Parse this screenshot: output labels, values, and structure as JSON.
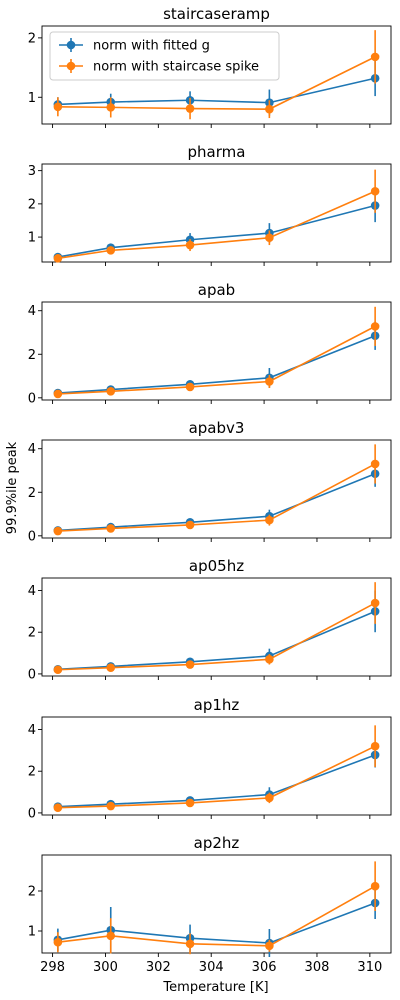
{
  "figure": {
    "ylabel": "99.9%ile peak",
    "xlabel": "Temperature [K]"
  },
  "colors": {
    "fitted": "#1f77b4",
    "spike": "#ff7f0e"
  },
  "legend": {
    "placement": "upper-left of first panel",
    "entries": [
      "norm with fitted g",
      "norm with staircase spike"
    ]
  },
  "chart_data": [
    {
      "type": "line",
      "title": "staircaseramp",
      "x": [
        298.2,
        300.2,
        303.2,
        306.2,
        310.2
      ],
      "xlim": [
        297.6,
        310.8
      ],
      "xticks": [
        298,
        300,
        302,
        304,
        306,
        308,
        310
      ],
      "ylim": [
        0.55,
        2.2
      ],
      "yticks": [
        1,
        2
      ],
      "series": [
        {
          "name": "norm with fitted g",
          "color": "#1f77b4",
          "values": [
            0.88,
            0.92,
            0.95,
            0.91,
            1.32
          ],
          "err": [
            0.12,
            0.14,
            0.15,
            0.22,
            0.3
          ]
        },
        {
          "name": "norm with staircase spike",
          "color": "#ff7f0e",
          "values": [
            0.84,
            0.83,
            0.81,
            0.8,
            1.68
          ],
          "err": [
            0.16,
            0.17,
            0.18,
            0.15,
            0.45
          ]
        }
      ]
    },
    {
      "type": "line",
      "title": "pharma",
      "x": [
        298.2,
        300.2,
        303.2,
        306.2,
        310.2
      ],
      "xlim": [
        297.6,
        310.8
      ],
      "xticks": [
        298,
        300,
        302,
        304,
        306,
        308,
        310
      ],
      "ylim": [
        0.25,
        3.2
      ],
      "yticks": [
        1,
        2,
        3
      ],
      "series": [
        {
          "name": "norm with fitted g",
          "color": "#1f77b4",
          "values": [
            0.4,
            0.68,
            0.92,
            1.12,
            1.95
          ],
          "err": [
            0.06,
            0.12,
            0.2,
            0.3,
            0.5
          ]
        },
        {
          "name": "norm with staircase spike",
          "color": "#ff7f0e",
          "values": [
            0.36,
            0.6,
            0.76,
            0.98,
            2.38
          ],
          "err": [
            0.08,
            0.12,
            0.18,
            0.22,
            0.65
          ]
        }
      ]
    },
    {
      "type": "line",
      "title": "apab",
      "x": [
        298.2,
        300.2,
        303.2,
        306.2,
        310.2
      ],
      "xlim": [
        297.6,
        310.8
      ],
      "xticks": [
        298,
        300,
        302,
        304,
        306,
        308,
        310
      ],
      "ylim": [
        -0.1,
        4.4
      ],
      "yticks": [
        0,
        2,
        4
      ],
      "series": [
        {
          "name": "norm with fitted g",
          "color": "#1f77b4",
          "values": [
            0.22,
            0.38,
            0.62,
            0.92,
            2.85
          ],
          "err": [
            0.06,
            0.12,
            0.18,
            0.45,
            0.65
          ]
        },
        {
          "name": "norm with staircase spike",
          "color": "#ff7f0e",
          "values": [
            0.18,
            0.3,
            0.5,
            0.75,
            3.28
          ],
          "err": [
            0.06,
            0.12,
            0.16,
            0.3,
            0.9
          ]
        }
      ]
    },
    {
      "type": "line",
      "title": "apabv3",
      "x": [
        298.2,
        300.2,
        303.2,
        306.2,
        310.2
      ],
      "xlim": [
        297.6,
        310.8
      ],
      "xticks": [
        298,
        300,
        302,
        304,
        306,
        308,
        310
      ],
      "ylim": [
        -0.1,
        4.4
      ],
      "yticks": [
        0,
        2,
        4
      ],
      "series": [
        {
          "name": "norm with fitted g",
          "color": "#1f77b4",
          "values": [
            0.25,
            0.4,
            0.62,
            0.9,
            2.85
          ],
          "err": [
            0.06,
            0.12,
            0.15,
            0.3,
            0.6
          ]
        },
        {
          "name": "norm with staircase spike",
          "color": "#ff7f0e",
          "values": [
            0.22,
            0.34,
            0.5,
            0.72,
            3.3
          ],
          "err": [
            0.06,
            0.1,
            0.16,
            0.25,
            0.9
          ]
        }
      ]
    },
    {
      "type": "line",
      "title": "ap05hz",
      "x": [
        298.2,
        300.2,
        303.2,
        306.2,
        310.2
      ],
      "xlim": [
        297.6,
        310.8
      ],
      "xticks": [
        298,
        300,
        302,
        304,
        306,
        308,
        310
      ],
      "ylim": [
        -0.1,
        4.6
      ],
      "yticks": [
        0,
        2,
        4
      ],
      "series": [
        {
          "name": "norm with fitted g",
          "color": "#1f77b4",
          "values": [
            0.22,
            0.36,
            0.58,
            0.86,
            3.0
          ],
          "err": [
            0.06,
            0.12,
            0.15,
            0.35,
            1.0
          ]
        },
        {
          "name": "norm with staircase spike",
          "color": "#ff7f0e",
          "values": [
            0.2,
            0.3,
            0.45,
            0.7,
            3.4
          ],
          "err": [
            0.06,
            0.1,
            0.15,
            0.25,
            1.0
          ]
        }
      ]
    },
    {
      "type": "line",
      "title": "ap1hz",
      "x": [
        298.2,
        300.2,
        303.2,
        306.2,
        310.2
      ],
      "xlim": [
        297.6,
        310.8
      ],
      "xticks": [
        298,
        300,
        302,
        304,
        306,
        308,
        310
      ],
      "ylim": [
        -0.1,
        4.6
      ],
      "yticks": [
        0,
        2,
        4
      ],
      "series": [
        {
          "name": "norm with fitted g",
          "color": "#1f77b4",
          "values": [
            0.3,
            0.42,
            0.6,
            0.88,
            2.78
          ],
          "err": [
            0.06,
            0.15,
            0.18,
            0.35,
            0.6
          ]
        },
        {
          "name": "norm with staircase spike",
          "color": "#ff7f0e",
          "values": [
            0.25,
            0.33,
            0.48,
            0.72,
            3.2
          ],
          "err": [
            0.06,
            0.1,
            0.15,
            0.25,
            1.0
          ]
        }
      ]
    },
    {
      "type": "line",
      "title": "ap2hz",
      "x": [
        298.2,
        300.2,
        303.2,
        306.2,
        310.2
      ],
      "xlim": [
        297.6,
        310.8
      ],
      "xticks": [
        298,
        300,
        302,
        304,
        306,
        308,
        310
      ],
      "xlabel": "Temperature [K]",
      "ylim": [
        0.45,
        2.9
      ],
      "yticks": [
        1,
        2
      ],
      "series": [
        {
          "name": "norm with fitted g",
          "color": "#1f77b4",
          "values": [
            0.78,
            1.02,
            0.82,
            0.7,
            1.7
          ],
          "err": [
            0.28,
            0.58,
            0.34,
            0.35,
            0.4
          ]
        },
        {
          "name": "norm with staircase spike",
          "color": "#ff7f0e",
          "values": [
            0.72,
            0.88,
            0.68,
            0.63,
            2.12
          ],
          "err": [
            0.25,
            0.44,
            0.26,
            0.15,
            0.62
          ]
        }
      ]
    }
  ]
}
